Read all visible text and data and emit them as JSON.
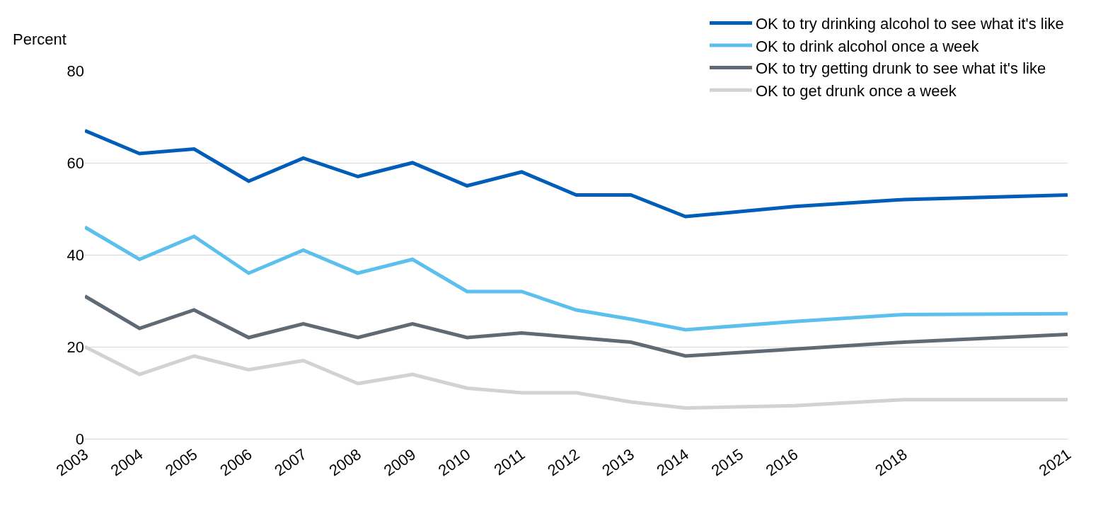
{
  "chart_data": {
    "type": "line",
    "ylabel": "Percent",
    "x": [
      2003,
      2004,
      2005,
      2006,
      2007,
      2008,
      2009,
      2010,
      2011,
      2012,
      2013,
      2014,
      2016,
      2018,
      2021
    ],
    "xlim": [
      2003,
      2021
    ],
    "xticks": [
      2003,
      2004,
      2005,
      2006,
      2007,
      2008,
      2009,
      2010,
      2011,
      2012,
      2013,
      2014,
      2015,
      2016,
      2018,
      2021
    ],
    "ylim": [
      0,
      80
    ],
    "yticks": [
      0,
      20,
      40,
      60,
      80
    ],
    "grid": "y",
    "legend": "top right",
    "marker": "none",
    "line_style": "solid",
    "series": [
      {
        "name": "OK to try drinking alcohol to see what it's like",
        "color": "#005eb8",
        "values": [
          67,
          62,
          63,
          56,
          61,
          57,
          60,
          55,
          58,
          53,
          53,
          48.3,
          50.5,
          52,
          53
        ]
      },
      {
        "name": "OK to drink alcohol once a week",
        "color": "#5bc0eb",
        "values": [
          46,
          39,
          44,
          36,
          41,
          36,
          39,
          32,
          32,
          28,
          26,
          23.7,
          25.5,
          27,
          27.2
        ]
      },
      {
        "name": "OK to try getting drunk to see what it's like",
        "color": "#606a74",
        "values": [
          31,
          24,
          28,
          22,
          25,
          22,
          25,
          22,
          23,
          22,
          21,
          18,
          19.5,
          21,
          22.7
        ]
      },
      {
        "name": "OK to get drunk once a week",
        "color": "#cfd3d1",
        "values": [
          20,
          14,
          18,
          15,
          17,
          12,
          14,
          11,
          10,
          10,
          8,
          6.7,
          7.2,
          8.5,
          8.5
        ]
      }
    ]
  }
}
